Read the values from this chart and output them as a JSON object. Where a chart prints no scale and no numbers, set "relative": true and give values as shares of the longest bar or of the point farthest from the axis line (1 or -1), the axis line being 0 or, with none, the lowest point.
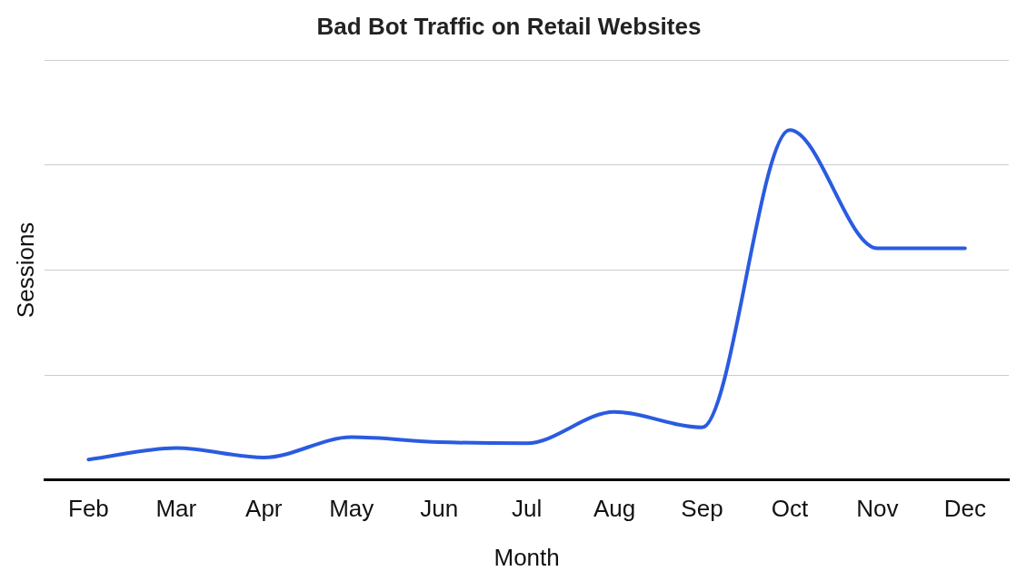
{
  "chart_data": {
    "type": "line",
    "title": "Bad Bot Traffic on Retail Websites",
    "xlabel": "Month",
    "ylabel": "Sessions",
    "relative": true,
    "grid": "y",
    "legend": false,
    "marker": "none",
    "line_style": "solid",
    "categories": [
      "Feb",
      "Mar",
      "Apr",
      "May",
      "Jun",
      "Jul",
      "Aug",
      "Sep",
      "Oct",
      "Nov",
      "Dec"
    ],
    "series": [
      {
        "color": "#2a5be0",
        "values": [
          0.058,
          0.091,
          0.064,
          0.122,
          0.108,
          0.105,
          0.194,
          0.15,
          1,
          0.662,
          0.662
        ]
      }
    ]
  }
}
